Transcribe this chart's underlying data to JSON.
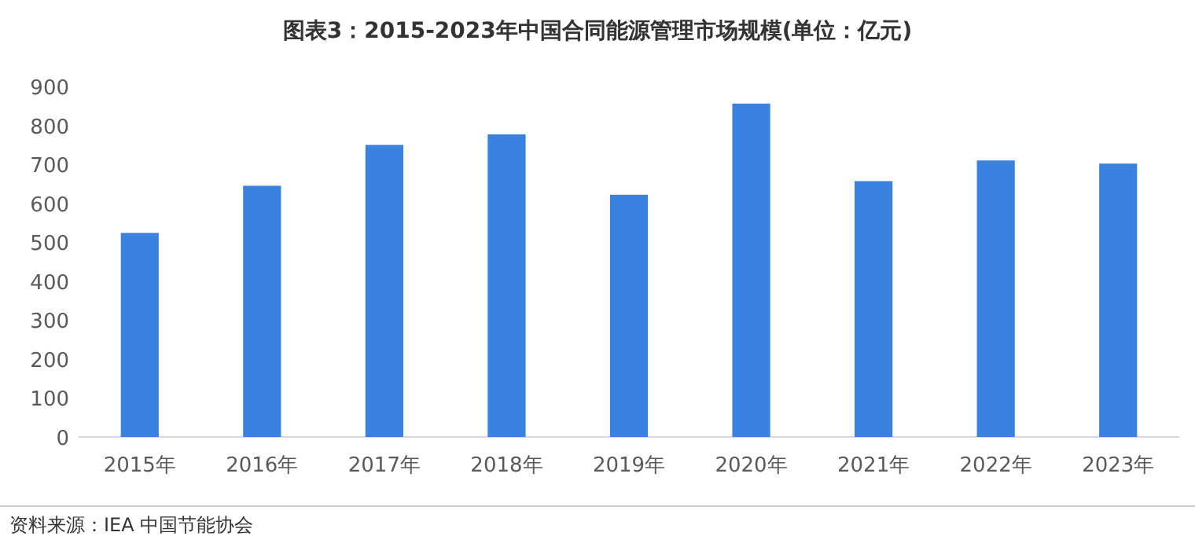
{
  "chart_data": {
    "type": "bar",
    "title": "图表3：2015-2023年中国合同能源管理市场规模(单位：亿元)",
    "categories": [
      "2015年",
      "2016年",
      "2017年",
      "2018年",
      "2019年",
      "2020年",
      "2021年",
      "2022年",
      "2023年"
    ],
    "values": [
      524,
      645,
      750,
      777,
      622,
      856,
      657,
      710,
      702
    ],
    "color": "#3a82e0",
    "ylim": [
      0,
      900
    ],
    "yticks": [
      0,
      100,
      200,
      300,
      400,
      500,
      600,
      700,
      800,
      900
    ],
    "grid": false,
    "annotations": [
      "资料来源：IEA 中国节能协会"
    ]
  }
}
